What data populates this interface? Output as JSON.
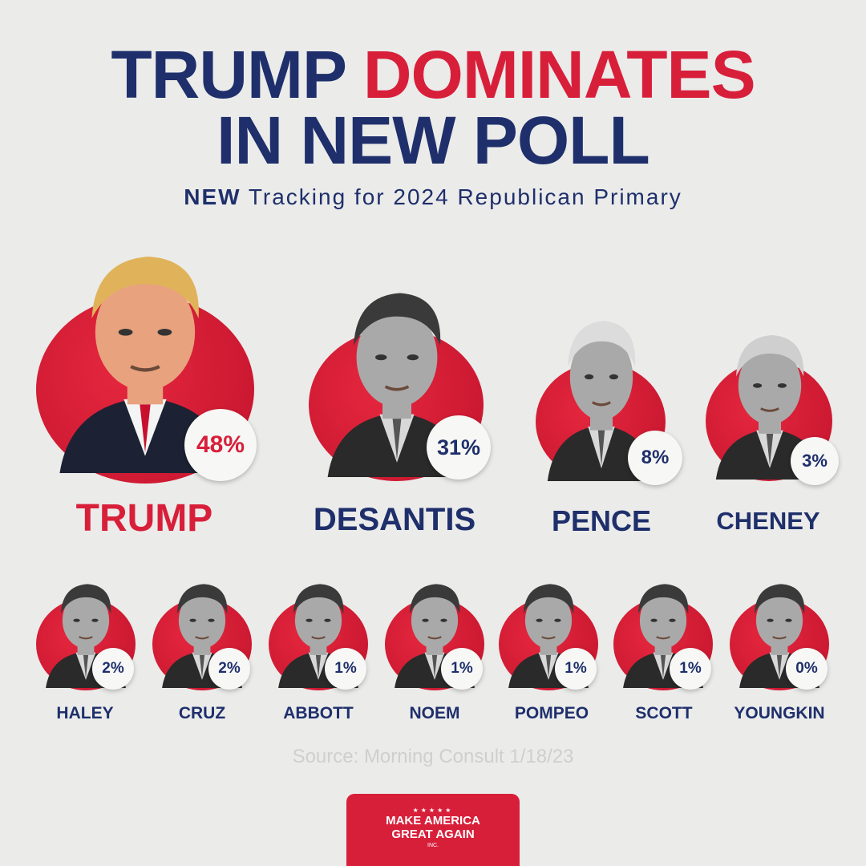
{
  "title": {
    "word1": "TRUMP",
    "word2": "DOMINATES",
    "line2": "IN NEW POLL"
  },
  "subtitle": {
    "bold": "NEW",
    "rest": "Tracking for 2024 Republican Primary"
  },
  "candidates": [
    {
      "name": "TRUMP",
      "percent": "48%",
      "highlight": true
    },
    {
      "name": "DESANTIS",
      "percent": "31%",
      "highlight": false
    },
    {
      "name": "PENCE",
      "percent": "8%",
      "highlight": false
    },
    {
      "name": "CHENEY",
      "percent": "3%",
      "highlight": false
    },
    {
      "name": "HALEY",
      "percent": "2%",
      "highlight": false
    },
    {
      "name": "CRUZ",
      "percent": "2%",
      "highlight": false
    },
    {
      "name": "ABBOTT",
      "percent": "1%",
      "highlight": false
    },
    {
      "name": "NOEM",
      "percent": "1%",
      "highlight": false
    },
    {
      "name": "POMPEO",
      "percent": "1%",
      "highlight": false
    },
    {
      "name": "SCOTT",
      "percent": "1%",
      "highlight": false
    },
    {
      "name": "YOUNGKIN",
      "percent": "0%",
      "highlight": false
    }
  ],
  "source": "Source: Morning Consult 1/18/23",
  "logo": {
    "stars": "★★★★★",
    "line1": "MAKE AMERICA",
    "line2": "GREAT AGAIN",
    "line3": "INC."
  },
  "colors": {
    "navy": "#1e2f6b",
    "red": "#d81f3a",
    "background": "#ebebea"
  }
}
